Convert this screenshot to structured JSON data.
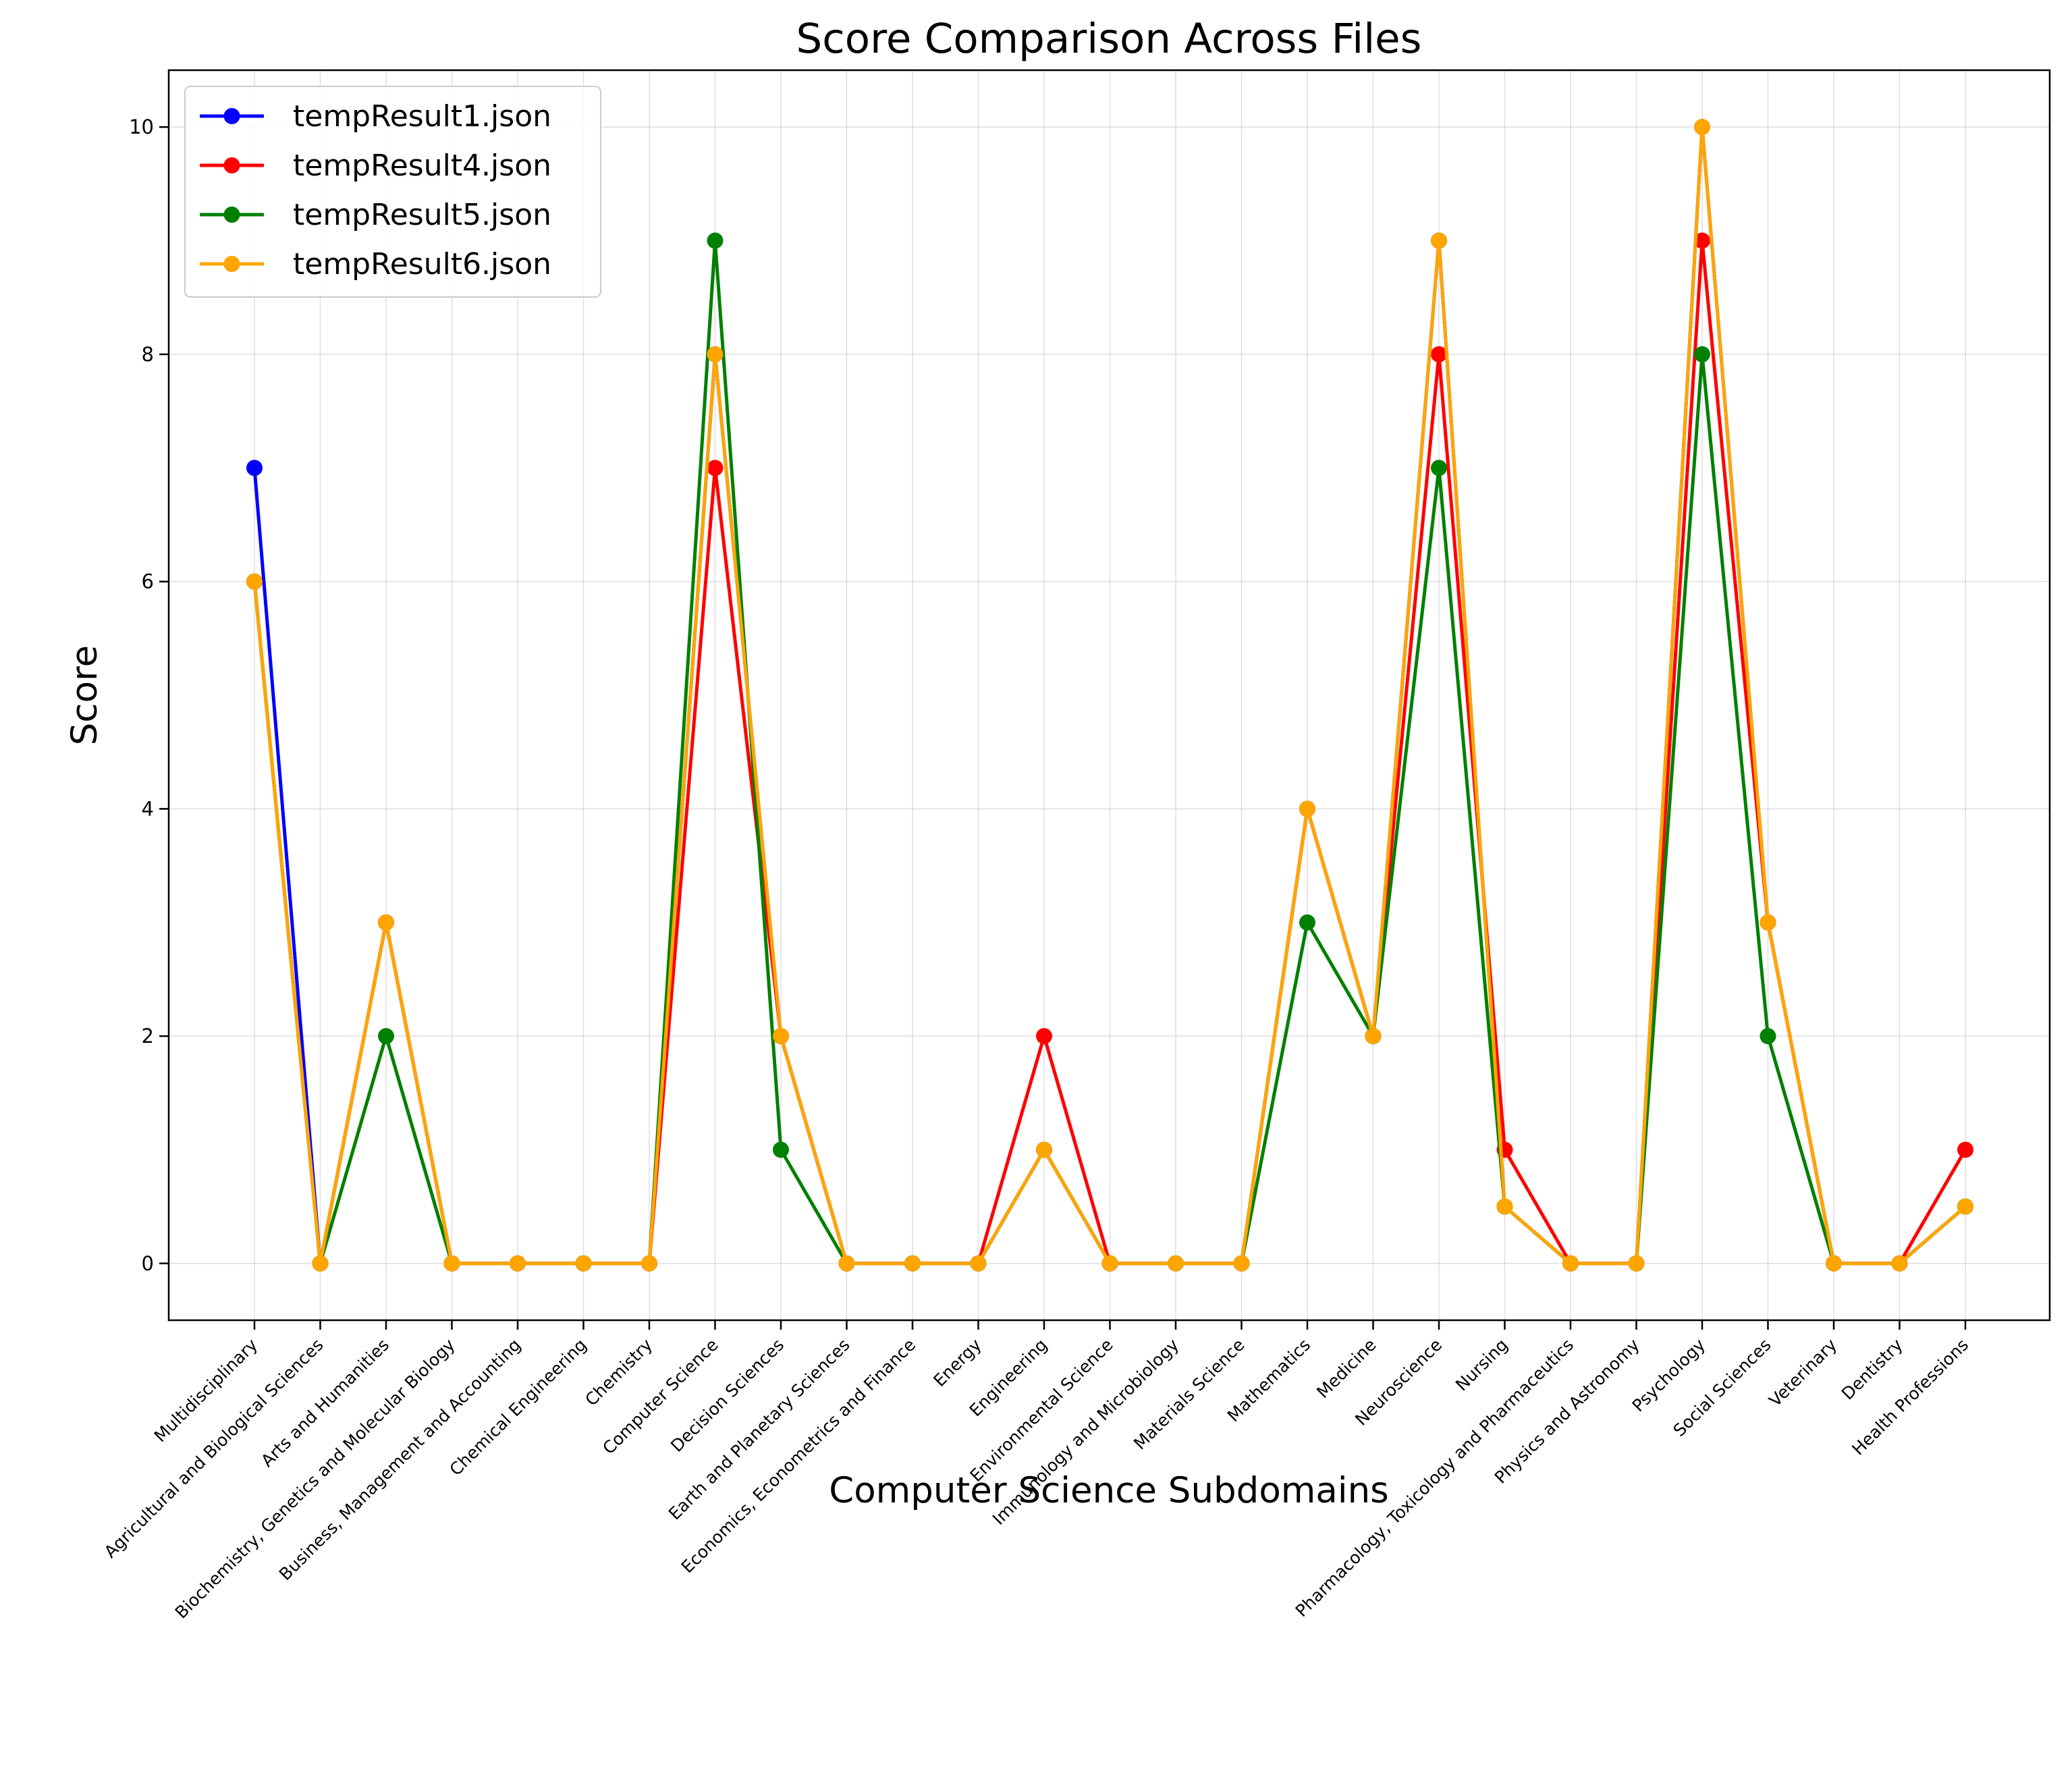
{
  "chart_data": {
    "type": "line",
    "title": "Score Comparison Across Files",
    "xlabel": "Computer Science Subdomains",
    "ylabel": "Score",
    "ylim": [
      -0.5,
      10.5
    ],
    "yticks": [
      "0",
      "2",
      "4",
      "6",
      "8",
      "10"
    ],
    "grid": true,
    "legend_position": "top-left",
    "categories": [
      "Multidisciplinary",
      "Agricultural and Biological Sciences",
      "Arts and Humanities",
      "Biochemistry, Genetics and Molecular Biology",
      "Business, Management and Accounting",
      "Chemical Engineering",
      "Chemistry",
      "Computer Science",
      "Decision Sciences",
      "Earth and Planetary Sciences",
      "Economics, Econometrics and Finance",
      "Energy",
      "Engineering",
      "Environmental Science",
      "Immunology and Microbiology",
      "Materials Science",
      "Mathematics",
      "Medicine",
      "Neuroscience",
      "Nursing",
      "Pharmacology, Toxicology and Pharmaceutics",
      "Physics and Astronomy",
      "Psychology",
      "Social Sciences",
      "Veterinary",
      "Dentistry",
      "Health Professions"
    ],
    "series": [
      {
        "name": "tempResult1.json",
        "color": "#0000ff",
        "values": [
          7,
          0,
          3,
          0,
          0,
          0,
          0,
          8,
          2,
          0,
          0,
          0,
          1,
          0,
          0,
          0,
          4,
          2,
          9,
          0.5,
          0,
          0,
          10,
          3,
          0,
          0,
          0.5
        ]
      },
      {
        "name": "tempResult4.json",
        "color": "#ff0000",
        "values": [
          6,
          0,
          3,
          0,
          0,
          0,
          0,
          7,
          2,
          0,
          0,
          0,
          2,
          0,
          0,
          0,
          4,
          2,
          8,
          1,
          0,
          0,
          9,
          3,
          0,
          0,
          1
        ]
      },
      {
        "name": "tempResult5.json",
        "color": "#008000",
        "values": [
          6,
          0,
          2,
          0,
          0,
          0,
          0,
          9,
          1,
          0,
          0,
          0,
          1,
          0,
          0,
          0,
          3,
          2,
          7,
          0.5,
          0,
          0,
          8,
          2,
          0,
          0,
          0.5
        ]
      },
      {
        "name": "tempResult6.json",
        "color": "#ffa500",
        "values": [
          6,
          0,
          3,
          0,
          0,
          0,
          0,
          8,
          2,
          0,
          0,
          0,
          1,
          0,
          0,
          0,
          4,
          2,
          9,
          0.5,
          0,
          0,
          10,
          3,
          0,
          0,
          0.5
        ]
      }
    ]
  }
}
